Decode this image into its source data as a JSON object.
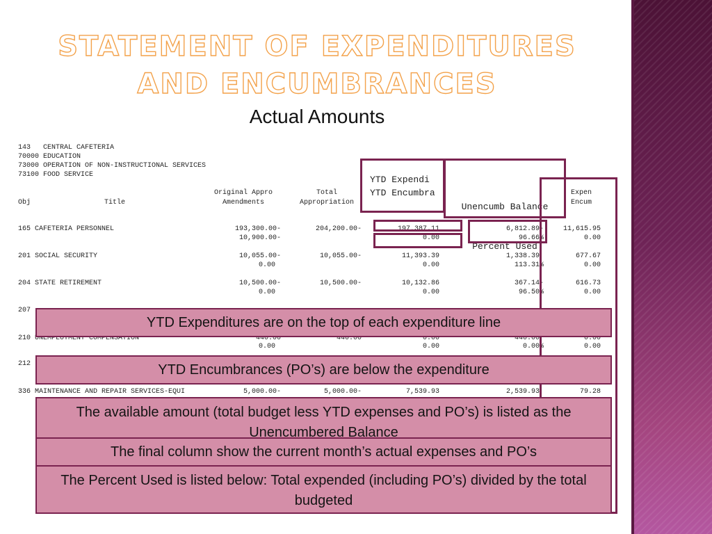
{
  "title": "Statement of Expenditures and Encumbrances",
  "subtitle": "Actual Amounts",
  "report": {
    "header_lines": [
      "143   CENTRAL CAFETERIA",
      "70000 EDUCATION",
      "73000 OPERATION OF NON-INSTRUCTIONAL SERVICES",
      "73100 FOOD SERVICE"
    ],
    "columns": {
      "obj": "Obj",
      "title": "Title",
      "orig_1": "Original Appro",
      "orig_2": "Amendments",
      "total_1": "Total",
      "total_2": "Appropriation",
      "ytd_1": "YTD Expendi",
      "ytd_2": "YTD Encumbra",
      "unenc_1": "Unencumb Balance",
      "unenc_2": "Percent Used",
      "exp_1": "Expen",
      "exp_2": "Encum"
    },
    "rows": [
      {
        "obj_title": "165 CAFETERIA PERSONNEL",
        "orig": "193,300.00-",
        "amend": "10,900.00-",
        "total": "204,200.00-",
        "ytd_exp": "197,387.11",
        "ytd_enc": "0.00",
        "unenc": "6,812.89-",
        "pct": "96.66%",
        "expen": "11,615.95",
        "encum": "0.00"
      },
      {
        "obj_title": "201 SOCIAL SECURITY",
        "orig": "10,055.00-",
        "amend": "0.00",
        "total": "10,055.00-",
        "ytd_exp": "11,393.39",
        "ytd_enc": "0.00",
        "unenc": "1,338.39",
        "pct": "113.31%",
        "expen": "677.67",
        "encum": "0.00"
      },
      {
        "obj_title": "204 STATE RETIREMENT",
        "orig": "10,500.00-",
        "amend": "0.00",
        "total": "10,500.00-",
        "ytd_exp": "10,132.86",
        "ytd_enc": "0.00",
        "unenc": "367.14-",
        "pct": "96.50%",
        "expen": "616.73",
        "encum": "0.00"
      }
    ],
    "partial_row_207": "207",
    "row_210": {
      "obj_title": "210 UNEMPLOYMENT COMPENSATION",
      "orig": "440.00",
      "total": "440.00",
      "ytd_exp": "0.00",
      "unenc": "440.00",
      "expen": "0.00",
      "amend": "0.00",
      "ytd_enc": "0.00",
      "pct": "0.00%",
      "encum": "0.00"
    },
    "partial_row_212": "212",
    "row_336": {
      "obj_title": "336 MAINTENANCE AND REPAIR SERVICES-EQUI",
      "orig": "5,000.00-",
      "total": "5,000.00-",
      "ytd_exp": "7,539.93",
      "unenc": "2,539.93",
      "expen": "79.28"
    }
  },
  "notes": [
    "YTD Expenditures are on the top of each expenditure line",
    "YTD Encumbrances (PO’s) are below the expenditure",
    "The available amount (total budget less YTD expenses and PO’s) is listed as the Unencumbered Balance",
    "The final column show the current month’s actual expenses and PO’s",
    "The Percent Used is listed below: Total expended (including PO’s) divided by the total budgeted"
  ]
}
